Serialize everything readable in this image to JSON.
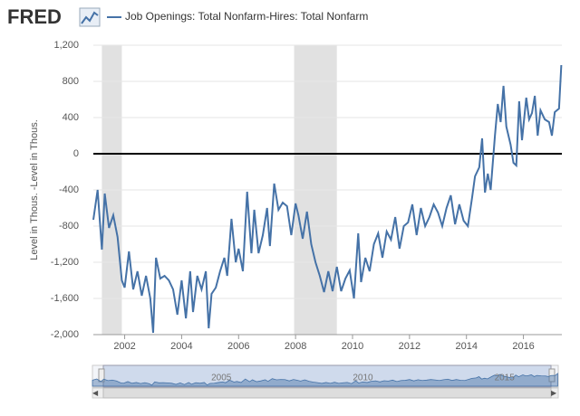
{
  "chart_data": {
    "type": "line",
    "logo": "FRED",
    "ylabel": "Level in Thous. -Level in Thous.",
    "series": [
      {
        "name": "Job Openings: Total Nonfarm-Hires: Total Nonfarm",
        "color": "#4572a7",
        "x": [
          2000.9,
          2001.05,
          2001.2,
          2001.3,
          2001.45,
          2001.6,
          2001.75,
          2001.9,
          2002.0,
          2002.15,
          2002.3,
          2002.45,
          2002.6,
          2002.75,
          2002.9,
          2003.0,
          2003.1,
          2003.25,
          2003.4,
          2003.55,
          2003.7,
          2003.85,
          2004.0,
          2004.15,
          2004.3,
          2004.4,
          2004.55,
          2004.7,
          2004.85,
          2004.95,
          2005.05,
          2005.2,
          2005.35,
          2005.5,
          2005.6,
          2005.75,
          2005.9,
          2006.0,
          2006.15,
          2006.3,
          2006.45,
          2006.55,
          2006.7,
          2006.85,
          2007.0,
          2007.1,
          2007.25,
          2007.4,
          2007.55,
          2007.7,
          2007.85,
          2008.0,
          2008.1,
          2008.25,
          2008.4,
          2008.55,
          2008.7,
          2008.85,
          2009.0,
          2009.15,
          2009.3,
          2009.45,
          2009.6,
          2009.75,
          2009.9,
          2010.05,
          2010.2,
          2010.3,
          2010.45,
          2010.6,
          2010.75,
          2010.9,
          2011.05,
          2011.2,
          2011.35,
          2011.5,
          2011.65,
          2011.8,
          2011.95,
          2012.1,
          2012.25,
          2012.4,
          2012.55,
          2012.7,
          2012.85,
          2013.0,
          2013.15,
          2013.3,
          2013.45,
          2013.6,
          2013.75,
          2013.9,
          2014.05,
          2014.2,
          2014.3,
          2014.45,
          2014.55,
          2014.65,
          2014.75,
          2014.85,
          2015.0,
          2015.1,
          2015.2,
          2015.3,
          2015.4,
          2015.55,
          2015.65,
          2015.75,
          2015.85,
          2015.95,
          2016.1,
          2016.2,
          2016.3,
          2016.4,
          2016.5,
          2016.6,
          2016.75,
          2016.9,
          2017.0,
          2017.1,
          2017.25,
          2017.33
        ],
        "values": [
          -730,
          -400,
          -1060,
          -440,
          -820,
          -680,
          -920,
          -1400,
          -1480,
          -1080,
          -1500,
          -1300,
          -1570,
          -1350,
          -1600,
          -1980,
          -1150,
          -1380,
          -1350,
          -1400,
          -1500,
          -1780,
          -1400,
          -1820,
          -1300,
          -1750,
          -1350,
          -1500,
          -1300,
          -1930,
          -1550,
          -1480,
          -1300,
          -1150,
          -1350,
          -720,
          -1200,
          -1050,
          -1300,
          -420,
          -1100,
          -620,
          -1100,
          -900,
          -600,
          -1020,
          -330,
          -620,
          -540,
          -580,
          -900,
          -550,
          -680,
          -940,
          -640,
          -1000,
          -1200,
          -1350,
          -1530,
          -1300,
          -1520,
          -1250,
          -1520,
          -1380,
          -1290,
          -1600,
          -880,
          -1420,
          -1150,
          -1300,
          -1000,
          -880,
          -1150,
          -860,
          -950,
          -700,
          -1050,
          -800,
          -760,
          -560,
          -900,
          -600,
          -800,
          -700,
          -560,
          -650,
          -800,
          -600,
          -460,
          -780,
          -560,
          -740,
          -800,
          -480,
          -250,
          -150,
          170,
          -430,
          -220,
          -400,
          200,
          550,
          350,
          750,
          300,
          100,
          -100,
          -130,
          580,
          150,
          620,
          380,
          450,
          640,
          200,
          480,
          380,
          350,
          200,
          460,
          500,
          980
        ]
      }
    ],
    "recessions": [
      [
        2001.2,
        2001.9
      ],
      [
        2007.95,
        2009.45
      ]
    ],
    "xlim": [
      2000.9,
      2017.35
    ],
    "xticks": [
      2002,
      2004,
      2006,
      2008,
      2010,
      2012,
      2014,
      2016
    ],
    "ylim": [
      -2000,
      1200
    ],
    "yticks": [
      {
        "value": -2000,
        "label": "-2,000"
      },
      {
        "value": -1600,
        "label": "-1,600"
      },
      {
        "value": -1200,
        "label": "-1,200"
      },
      -800,
      -400,
      0,
      400,
      800,
      {
        "value": 1200,
        "label": "1,200"
      }
    ],
    "grid": true,
    "navigator_ticks": [
      2005,
      2010,
      2015
    ]
  }
}
